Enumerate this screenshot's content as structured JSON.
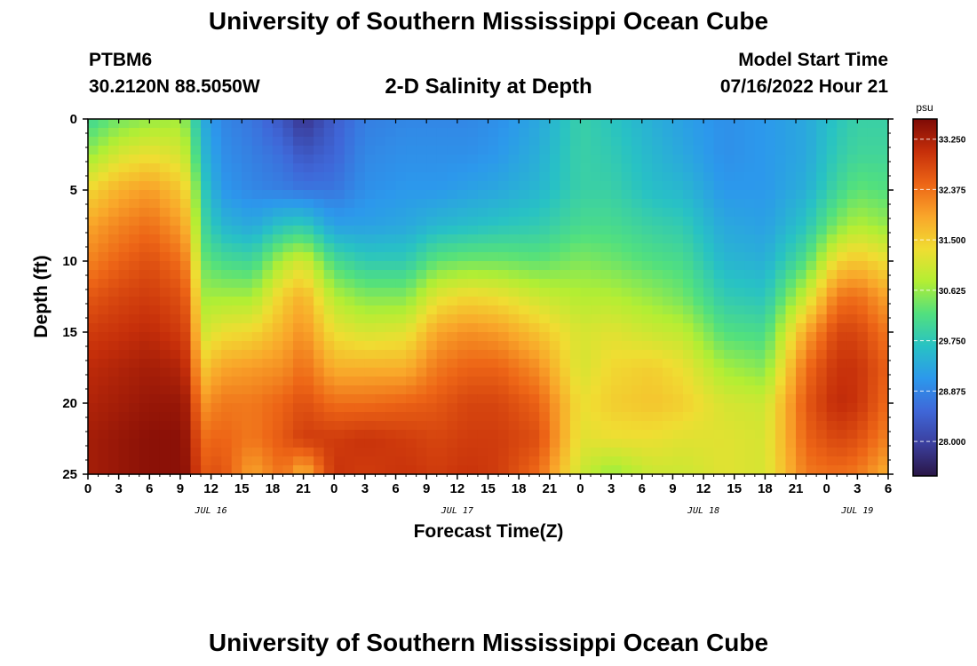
{
  "header": {
    "title": "University of Southern Mississippi Ocean Cube",
    "station": "PTBM6",
    "coords": "30.2120N  88.5050W",
    "plot_title": "2-D Salinity at Depth",
    "model_label": "Model Start Time",
    "model_time": "07/16/2022 Hour 21"
  },
  "footer": {
    "title": "University of Southern Mississippi Ocean Cube"
  },
  "chart_data": {
    "type": "heatmap",
    "title": "2-D Salinity at Depth",
    "xlabel": "Forecast Time(Z)",
    "ylabel": "Depth (ft)",
    "x_hours_range": [
      0,
      78
    ],
    "x_tick_labels": [
      "0",
      "3",
      "6",
      "9",
      "12",
      "15",
      "18",
      "21",
      "0",
      "3",
      "6",
      "9",
      "12",
      "15",
      "18",
      "21",
      "0",
      "3",
      "6",
      "9",
      "12",
      "15",
      "18",
      "21",
      "0",
      "3",
      "6"
    ],
    "x_day_labels": [
      {
        "hour": 12,
        "label": "JUL 16"
      },
      {
        "hour": 36,
        "label": "JUL 17"
      },
      {
        "hour": 60,
        "label": "JUL 18"
      },
      {
        "hour": 75,
        "label": "JUL 19"
      }
    ],
    "ylim": [
      0,
      25
    ],
    "y_ticks": [
      0,
      5,
      10,
      15,
      20,
      25
    ],
    "y_inverted": true,
    "colorbar": {
      "unit": "psu",
      "vmin": 27.4,
      "vmax": 33.6,
      "ticks": [
        "33.250",
        "32.375",
        "31.500",
        "30.625",
        "29.750",
        "28.875",
        "28.000"
      ],
      "tick_values": [
        33.25,
        32.375,
        31.5,
        30.625,
        29.75,
        28.875,
        28.0
      ],
      "colors": [
        "#2a1646",
        "#3b3f9e",
        "#3f67d8",
        "#2c98ec",
        "#28c2c4",
        "#52e07e",
        "#b3ee33",
        "#f0dd32",
        "#f9a62a",
        "#ed6516",
        "#c62f0a",
        "#7e0a06"
      ]
    },
    "profiles_hours": [
      0,
      3,
      6,
      9,
      10,
      11,
      13,
      16,
      19,
      21,
      24,
      27,
      31,
      34,
      37,
      40,
      44,
      48,
      51,
      55,
      58,
      62,
      66,
      70,
      73,
      75,
      78
    ],
    "depth_levels_ft": [
      0,
      2.5,
      5,
      7.5,
      10,
      12.5,
      15,
      17.5,
      20,
      22.5,
      25
    ],
    "salinity_profiles": [
      [
        30.0,
        30.6,
        31.4,
        31.9,
        32.2,
        32.6,
        32.9,
        33.1,
        33.2,
        33.3,
        33.3
      ],
      [
        30.4,
        31.1,
        31.8,
        32.2,
        32.5,
        32.8,
        33.0,
        33.2,
        33.3,
        33.4,
        33.4
      ],
      [
        30.6,
        31.3,
        32.0,
        32.4,
        32.7,
        32.9,
        33.1,
        33.3,
        33.4,
        33.5,
        33.5
      ],
      [
        30.7,
        31.1,
        31.6,
        32.0,
        32.4,
        32.7,
        32.9,
        33.2,
        33.4,
        33.5,
        33.5
      ],
      [
        30.3,
        30.7,
        31.2,
        31.6,
        32.0,
        32.4,
        32.7,
        32.9,
        33.2,
        33.3,
        33.4
      ],
      [
        29.4,
        29.6,
        29.9,
        30.1,
        30.4,
        30.7,
        31.0,
        31.5,
        32.0,
        32.4,
        32.6
      ],
      [
        28.9,
        29.0,
        29.1,
        29.5,
        30.1,
        30.7,
        31.3,
        31.9,
        32.3,
        32.5,
        32.7
      ],
      [
        28.7,
        28.8,
        28.9,
        29.3,
        30.0,
        30.7,
        31.4,
        32.0,
        32.3,
        32.3,
        31.9
      ],
      [
        28.3,
        28.6,
        28.8,
        29.7,
        30.8,
        31.5,
        31.8,
        32.1,
        32.5,
        32.6,
        32.4
      ],
      [
        27.8,
        28.3,
        28.7,
        29.8,
        31.1,
        31.8,
        32.1,
        32.4,
        32.7,
        32.9,
        31.7
      ],
      [
        28.4,
        28.5,
        28.7,
        29.2,
        30.1,
        30.8,
        31.3,
        31.8,
        32.4,
        32.9,
        33.0
      ],
      [
        28.8,
        28.9,
        29.0,
        29.2,
        29.8,
        30.5,
        31.1,
        31.8,
        32.4,
        33.0,
        32.9
      ],
      [
        28.9,
        29.0,
        29.1,
        29.3,
        29.8,
        30.5,
        31.2,
        31.8,
        32.5,
        32.9,
        33.0
      ],
      [
        28.9,
        29.0,
        29.1,
        29.5,
        30.3,
        31.2,
        31.9,
        32.3,
        32.6,
        32.8,
        32.9
      ],
      [
        28.9,
        29.0,
        29.2,
        29.6,
        30.4,
        31.4,
        32.1,
        32.5,
        32.8,
        32.9,
        33.0
      ],
      [
        29.0,
        29.1,
        29.3,
        29.7,
        30.4,
        31.3,
        32.0,
        32.5,
        32.8,
        32.9,
        32.9
      ],
      [
        29.3,
        29.4,
        29.5,
        29.8,
        30.3,
        31.0,
        31.6,
        32.1,
        32.5,
        32.7,
        32.4
      ],
      [
        29.9,
        29.9,
        29.9,
        30.1,
        30.5,
        30.8,
        31.1,
        31.1,
        31.3,
        31.2,
        31.0
      ],
      [
        29.7,
        29.8,
        29.9,
        30.1,
        30.4,
        30.8,
        31.2,
        31.4,
        31.5,
        31.3,
        30.6
      ],
      [
        29.4,
        29.5,
        29.6,
        29.9,
        30.2,
        30.6,
        31.0,
        31.5,
        31.6,
        31.3,
        31.0
      ],
      [
        29.2,
        29.3,
        29.5,
        29.8,
        30.1,
        30.4,
        30.9,
        31.3,
        31.5,
        31.2,
        31.0
      ],
      [
        29.0,
        29.0,
        29.1,
        29.3,
        29.5,
        29.8,
        30.2,
        30.7,
        31.1,
        31.2,
        31.2
      ],
      [
        29.1,
        29.1,
        29.1,
        29.2,
        29.4,
        29.7,
        30.1,
        30.5,
        31.0,
        31.1,
        31.1
      ],
      [
        29.3,
        29.3,
        29.4,
        29.7,
        30.2,
        31.0,
        31.9,
        32.4,
        32.6,
        32.5,
        32.3
      ],
      [
        29.7,
        29.8,
        30.0,
        30.5,
        31.4,
        32.3,
        32.8,
        33.0,
        33.1,
        32.8,
        32.4
      ],
      [
        29.9,
        30.0,
        30.3,
        30.8,
        31.6,
        32.4,
        32.8,
        33.0,
        33.0,
        32.7,
        32.3
      ],
      [
        29.9,
        30.0,
        30.2,
        30.6,
        31.3,
        31.9,
        32.3,
        32.5,
        32.4,
        32.2,
        31.8
      ]
    ]
  }
}
